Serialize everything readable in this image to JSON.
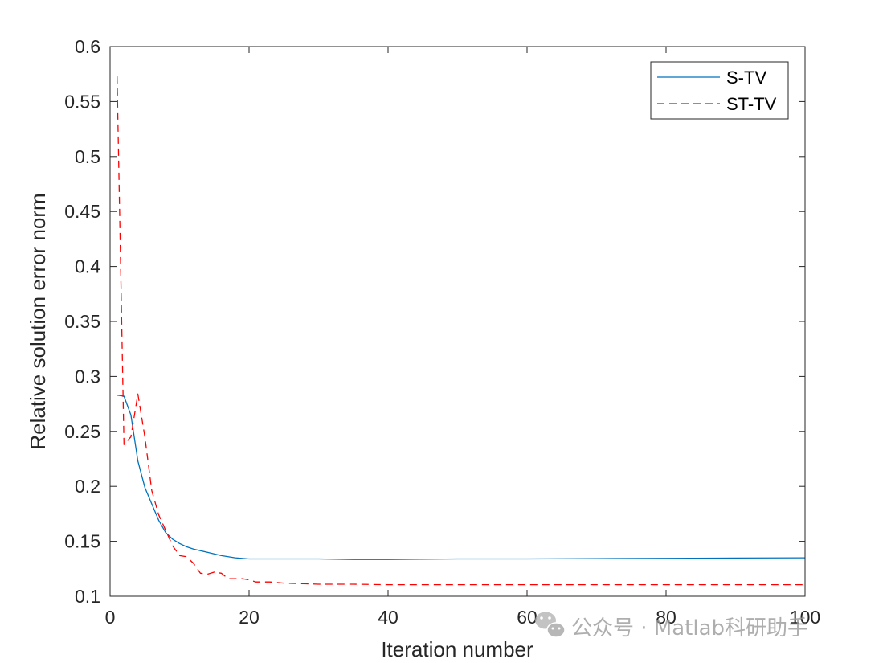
{
  "chart_data": {
    "type": "line",
    "title": "",
    "xlabel": "Iteration number",
    "ylabel": "Relative solution error norm",
    "xlim": [
      0,
      100
    ],
    "ylim": [
      0.1,
      0.6
    ],
    "xticks": [
      0,
      20,
      40,
      60,
      80,
      100
    ],
    "xtick_labels": [
      "0",
      "20",
      "40",
      "60",
      "80",
      "100"
    ],
    "yticks": [
      0.1,
      0.15,
      0.2,
      0.25,
      0.3,
      0.35,
      0.4,
      0.45,
      0.5,
      0.55,
      0.6
    ],
    "ytick_labels": [
      "0.1",
      "0.15",
      "0.2",
      "0.25",
      "0.3",
      "0.35",
      "0.4",
      "0.45",
      "0.5",
      "0.55",
      "0.6"
    ],
    "grid": false,
    "legend_position": "top-right",
    "series": [
      {
        "name": "S-TV",
        "color": "#0072BD",
        "style": "solid",
        "x": [
          1,
          2,
          3,
          4,
          5,
          6,
          7,
          8,
          9,
          10,
          11,
          12,
          14,
          16,
          18,
          20,
          25,
          30,
          35,
          40,
          50,
          60,
          70,
          80,
          90,
          100
        ],
        "y": [
          0.283,
          0.282,
          0.265,
          0.223,
          0.199,
          0.184,
          0.169,
          0.158,
          0.152,
          0.148,
          0.145,
          0.143,
          0.14,
          0.137,
          0.135,
          0.134,
          0.134,
          0.134,
          0.1335,
          0.1335,
          0.134,
          0.134,
          0.1343,
          0.1345,
          0.1348,
          0.135
        ]
      },
      {
        "name": "ST-TV",
        "color": "#FF0000",
        "style": "dashed",
        "x": [
          1,
          2,
          3,
          4,
          5,
          6,
          7,
          8,
          9,
          10,
          11,
          12,
          13,
          14,
          15,
          16,
          17,
          18,
          19,
          20,
          21,
          23,
          25,
          30,
          35,
          40,
          50,
          60,
          70,
          80,
          90,
          100
        ],
        "y": [
          0.573,
          0.238,
          0.245,
          0.284,
          0.245,
          0.196,
          0.174,
          0.16,
          0.146,
          0.137,
          0.136,
          0.13,
          0.121,
          0.12,
          0.122,
          0.121,
          0.116,
          0.116,
          0.116,
          0.115,
          0.113,
          0.113,
          0.112,
          0.111,
          0.111,
          0.1105,
          0.1105,
          0.1105,
          0.1105,
          0.1105,
          0.1105,
          0.1105
        ]
      }
    ]
  },
  "watermark": {
    "text": "公众号 · Matlab科研助手",
    "icon": "wechat-icon"
  }
}
